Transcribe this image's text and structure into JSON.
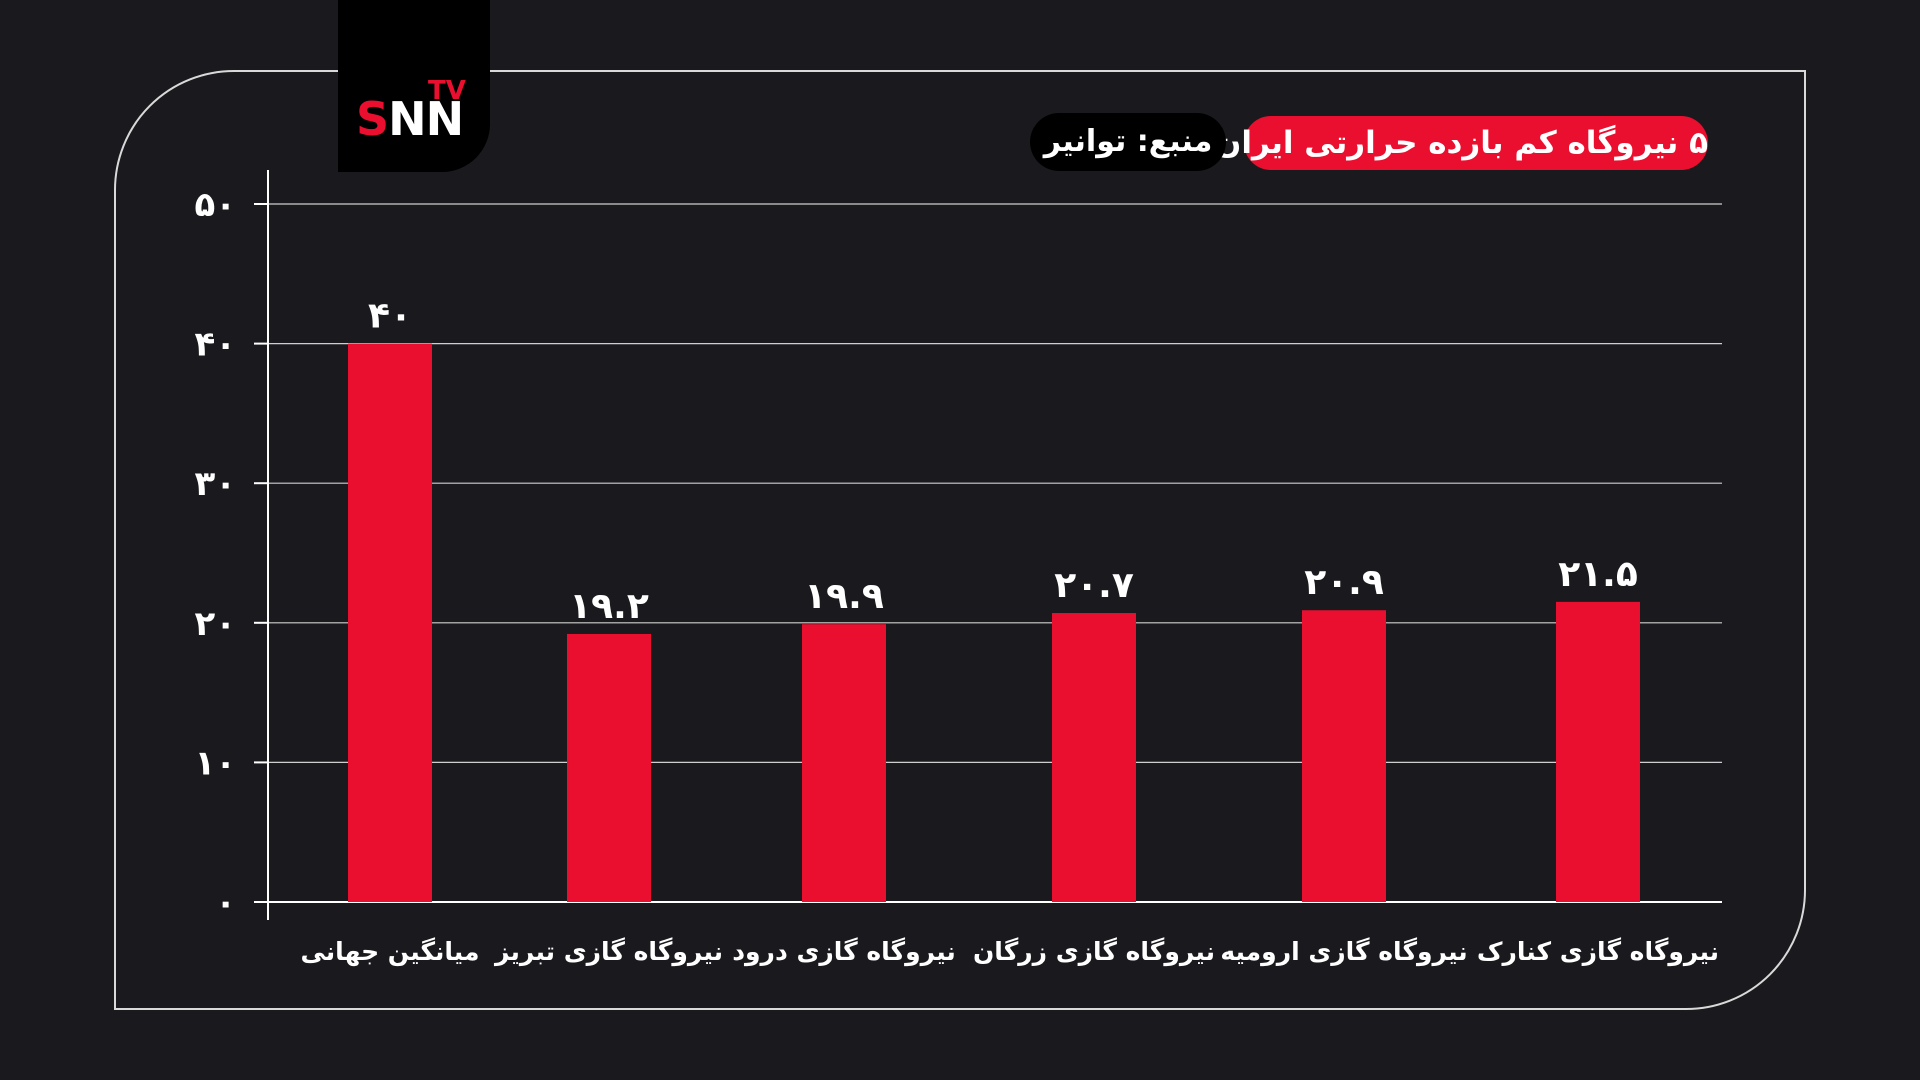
{
  "brand": {
    "logo_main": "SNN",
    "logo_s": "S",
    "logo_nn": "NN",
    "logo_tv": "TV",
    "accent": "#ea0f2f"
  },
  "header": {
    "title": "۵ نیروگاه کم بازده حرارتی ایران",
    "source": "منبع: توانیر"
  },
  "chart_data": {
    "type": "bar",
    "categories": [
      "میانگین جهانی",
      "نیروگاه گازی تبریز",
      "نیروگاه گازی درود",
      "نیروگاه گازی زرگان",
      "نیروگاه گازی ارومیه",
      "نیروگاه گازی کنارک"
    ],
    "values": [
      40,
      19.2,
      19.9,
      20.7,
      20.9,
      21.5
    ],
    "value_labels": [
      "۴۰",
      "۱۹.۲",
      "۱۹.۹",
      "۲۰.۷",
      "۲۰.۹",
      "۲۱.۵"
    ],
    "y_ticks": [
      0,
      10,
      20,
      30,
      40,
      50
    ],
    "y_tick_labels": [
      "۰",
      "۱۰",
      "۲۰",
      "۳۰",
      "۴۰",
      "۵۰"
    ],
    "ylim": [
      0,
      50
    ],
    "grid": true,
    "bar_color": "#ea0f2f",
    "title": "۵ نیروگاه کم بازده حرارتی ایران"
  }
}
